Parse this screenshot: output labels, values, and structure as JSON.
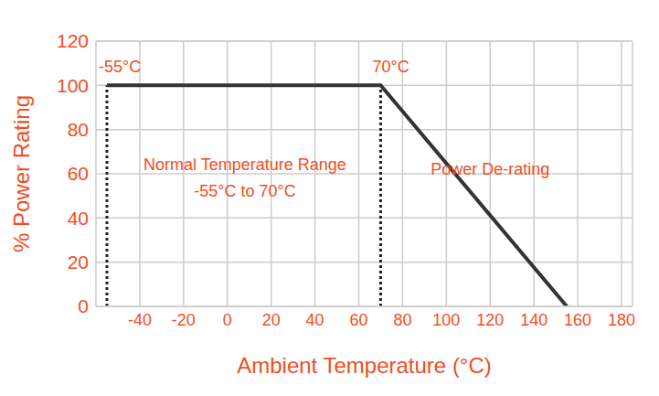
{
  "chart_data": {
    "type": "line",
    "x": [
      -55,
      70,
      155
    ],
    "values": [
      100,
      100,
      0
    ],
    "color": "#333333",
    "xlabel": "Ambient Temperature (°C)",
    "ylabel": "% Power Rating",
    "xlim": [
      -60,
      185
    ],
    "ylim": [
      0,
      120
    ],
    "xticks": [
      -40,
      -20,
      0,
      20,
      40,
      60,
      80,
      100,
      120,
      140,
      160,
      180
    ],
    "yticks": [
      0,
      20,
      40,
      60,
      80,
      100,
      120
    ],
    "grid": true,
    "vlines": [
      {
        "x": -55,
        "y": [
          0,
          100
        ],
        "label": "-55°C",
        "line_style": "dotted"
      },
      {
        "x": 70,
        "y": [
          0,
          100
        ],
        "label": "70°C",
        "line_style": "dotted"
      }
    ],
    "annotations": [
      {
        "text": "Normal Temperature Range",
        "x": 8,
        "y": 64
      },
      {
        "text": "-55°C to 70°C",
        "x": 8,
        "y": 52
      },
      {
        "text": "Power De-rating",
        "x": 120,
        "y": 62
      }
    ]
  }
}
